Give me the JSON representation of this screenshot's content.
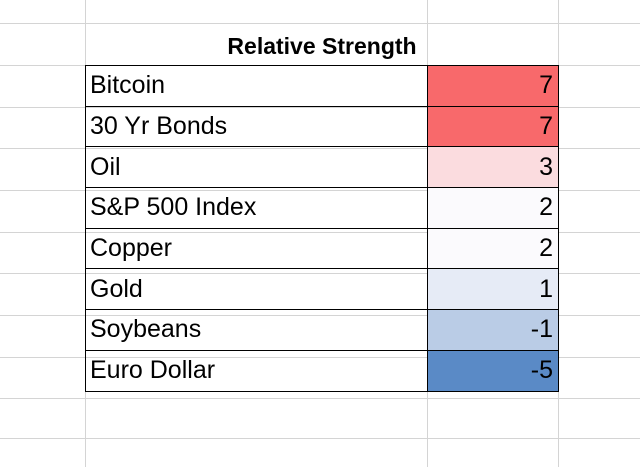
{
  "title": "Relative Strength",
  "rows": [
    {
      "name": "Bitcoin",
      "value": "7",
      "color": "#f8696b"
    },
    {
      "name": "30 Yr Bonds",
      "value": "7",
      "color": "#f8696b"
    },
    {
      "name": "Oil",
      "value": "3",
      "color": "#fbdcdf"
    },
    {
      "name": "S&P 500 Index",
      "value": "2",
      "color": "#fbfafd"
    },
    {
      "name": "Copper",
      "value": "2",
      "color": "#fbfafd"
    },
    {
      "name": "Gold",
      "value": "1",
      "color": "#e6ebf6"
    },
    {
      "name": "Soybeans",
      "value": "-1",
      "color": "#bacce6"
    },
    {
      "name": "Euro Dollar",
      "value": "-5",
      "color": "#5a8ac6"
    }
  ]
}
